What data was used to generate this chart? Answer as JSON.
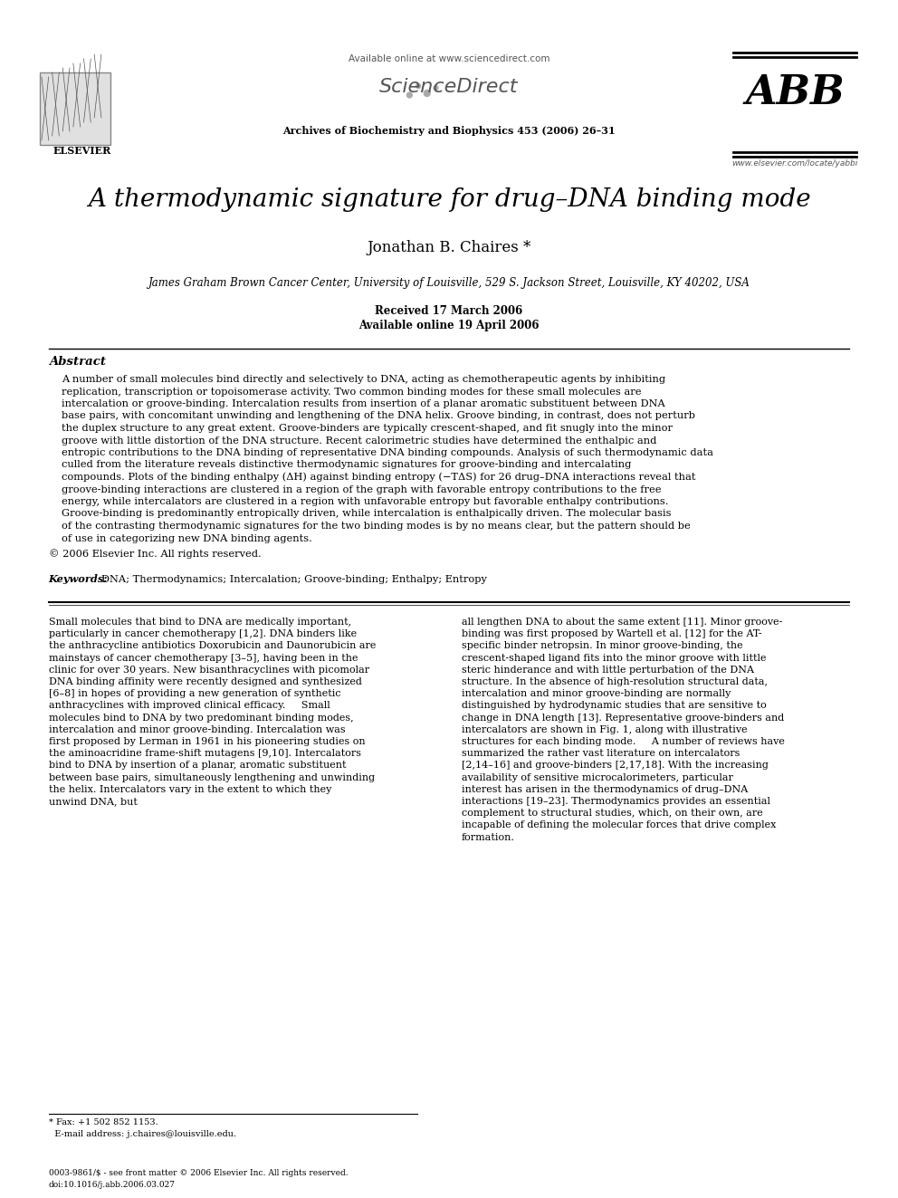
{
  "title": "A thermodynamic signature for drug–DNA binding mode",
  "author": "Jonathan B. Chaires *",
  "affiliation": "James Graham Brown Cancer Center, University of Louisville, 529 S. Jackson Street, Louisville, KY 40202, USA",
  "received": "Received 17 March 2006",
  "available": "Available online 19 April 2006",
  "journal": "Archives of Biochemistry and Biophysics 453 (2006) 26–31",
  "sciencedirect_text": "Available online at www.sciencedirect.com",
  "sciencedirect_logo": "ScienceDirect",
  "elsevier_text": "ELSEVIER",
  "abb_text": "ABB",
  "website": "www.elsevier.com/locate/yabbi",
  "abstract_title": "Abstract",
  "abstract_text": "A number of small molecules bind directly and selectively to DNA, acting as chemotherapeutic agents by inhibiting replication, transcription or topoisomerase activity. Two common binding modes for these small molecules are intercalation or groove-binding. Intercalation results from insertion of a planar aromatic substituent between DNA base pairs, with concomitant unwinding and lengthening of the DNA helix. Groove binding, in contrast, does not perturb the duplex structure to any great extent. Groove-binders are typically crescent-shaped, and fit snugly into the minor groove with little distortion of the DNA structure. Recent calorimetric studies have determined the enthalpic and entropic contributions to the DNA binding of representative DNA binding compounds. Analysis of such thermodynamic data culled from the literature reveals distinctive thermodynamic signatures for groove-binding and intercalating compounds. Plots of the binding enthalpy (ΔH) against binding entropy (−TΔS) for 26 drug–DNA interactions reveal that groove-binding interactions are clustered in a region of the graph with favorable entropy contributions to the free energy, while intercalators are clustered in a region with unfavorable entropy but favorable enthalpy contributions. Groove-binding is predominantly entropically driven, while intercalation is enthalpically driven. The molecular basis of the contrasting thermodynamic signatures for the two binding modes is by no means clear, but the pattern should be of use in categorizing new DNA binding agents.",
  "copyright": "© 2006 Elsevier Inc. All rights reserved.",
  "keywords_label": "Keywords:",
  "keywords": "DNA; Thermodynamics; Intercalation; Groove-binding; Enthalpy; Entropy",
  "body_col1": "Small molecules that bind to DNA are medically important, particularly in cancer chemotherapy [1,2]. DNA binders like the anthracycline antibiotics Doxorubicin and Daunorubicin are mainstays of cancer chemotherapy [3–5], having been in the clinic for over 30 years. New bisanthracyclines with picomolar DNA binding affinity were recently designed and synthesized [6–8] in hopes of providing a new generation of synthetic anthracyclines with improved clinical efficacy.\n    Small molecules bind to DNA by two predominant binding modes, intercalation and minor groove-binding. Intercalation was first proposed by Lerman in 1961 in his pioneering studies on the aminoacridine frame-shift mutagens [9,10]. Intercalators bind to DNA by insertion of a planar, aromatic substituent between base pairs, simultaneously lengthening and unwinding the helix. Intercalators vary in the extent to which they unwind DNA, but",
  "body_col2": "all lengthen DNA to about the same extent [11]. Minor groove-binding was first proposed by Wartell et al. [12] for the AT-specific binder netropsin. In minor groove-binding, the crescent-shaped ligand fits into the minor groove with little steric hinderance and with little perturbation of the DNA structure. In the absence of high-resolution structural data, intercalation and minor groove-binding are normally distinguished by hydrodynamic studies that are sensitive to change in DNA length [13]. Representative groove-binders and intercalators are shown in Fig. 1, along with illustrative structures for each binding mode.\n    A number of reviews have summarized the rather vast literature on intercalators [2,14–16] and groove-binders [2,17,18]. With the increasing availability of sensitive microcalorimeters, particular interest has arisen in the thermodynamics of drug–DNA interactions [19–23]. Thermodynamics provides an essential complement to structural studies, which, on their own, are incapable of defining the molecular forces that drive complex formation.",
  "footnote": "* Fax: +1 502 852 1153.\n  E-mail address: j.chaires@louisville.edu.",
  "footer_text": "0003-9861/$ - see front matter © 2006 Elsevier Inc. All rights reserved.\ndoi:10.1016/j.abb.2006.03.027",
  "bg_color": "#ffffff",
  "text_color": "#000000"
}
